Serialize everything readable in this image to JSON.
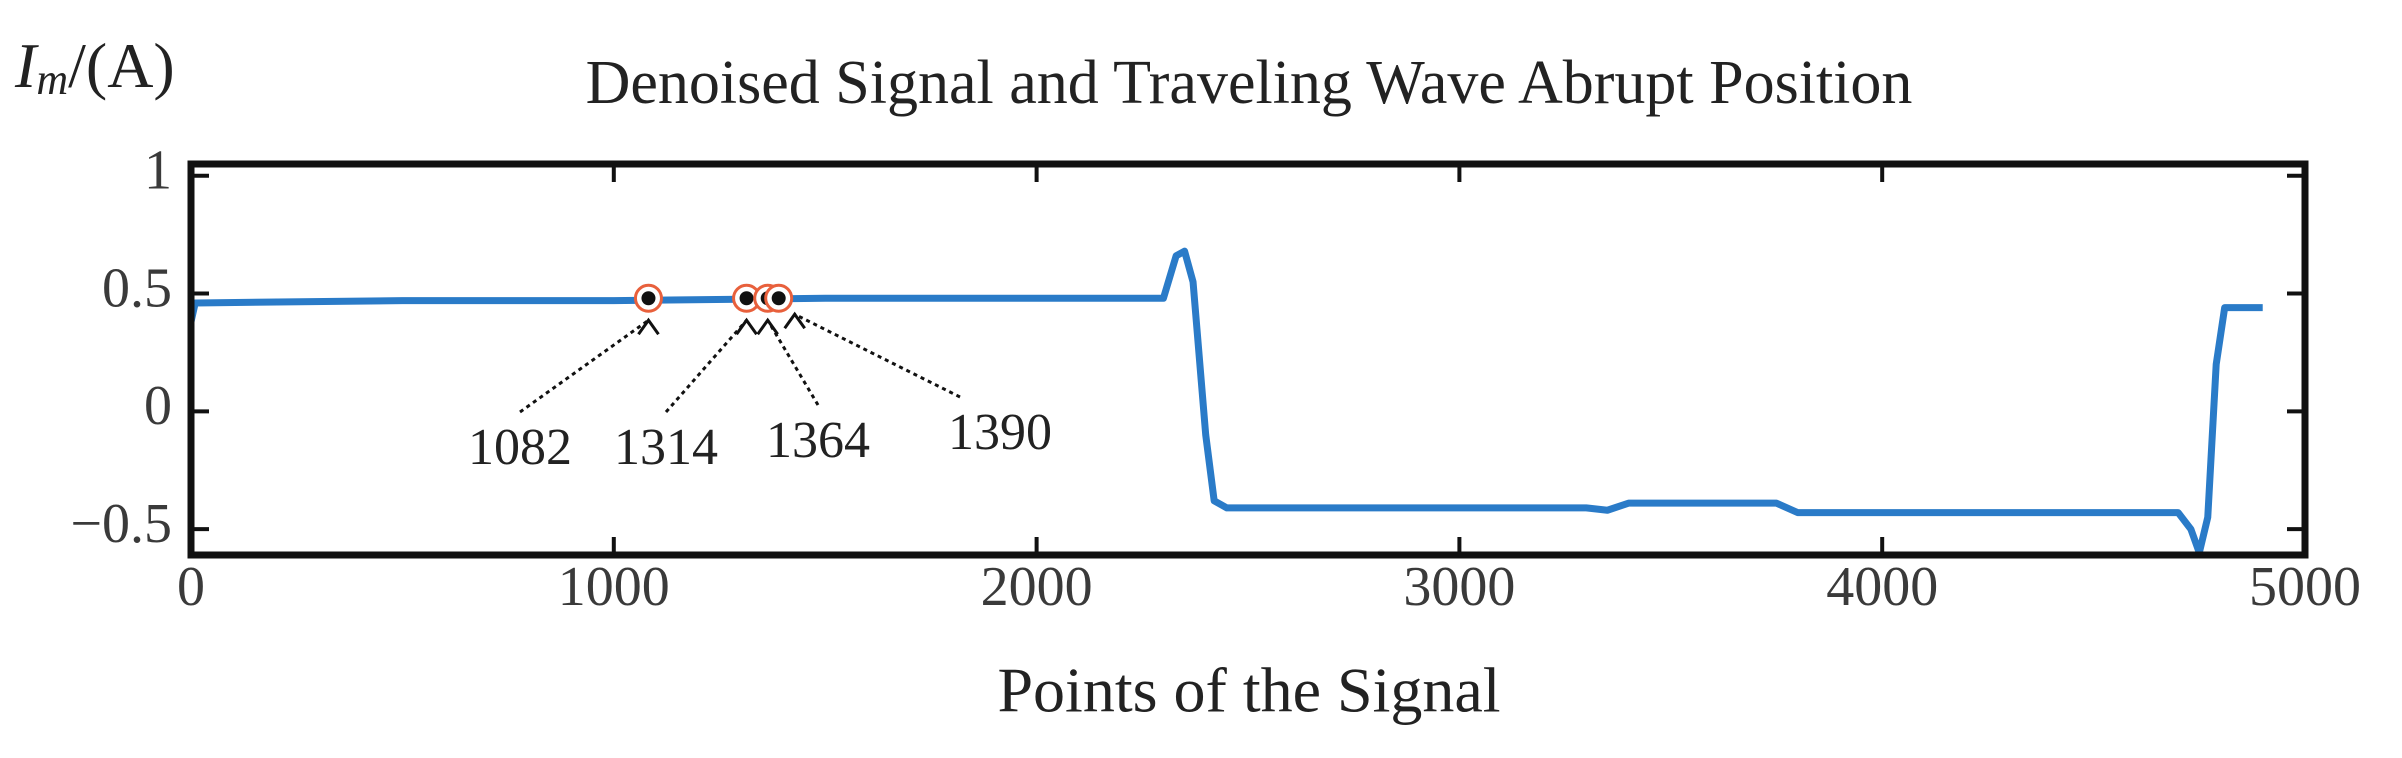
{
  "chart_data": {
    "type": "line",
    "title": "Denoised Signal and Traveling Wave Abrupt Position",
    "y_label": {
      "base": "I",
      "sub": "m",
      "unit": "/(A)"
    },
    "x_label": "Points of the Signal",
    "xlim": [
      0,
      5000
    ],
    "xticks": [
      0,
      1000,
      2000,
      3000,
      4000,
      5000
    ],
    "ylim": [
      -0.61,
      1.05
    ],
    "yticks": [
      -0.5,
      0,
      0.5,
      1
    ],
    "x": [
      0,
      10,
      500,
      1000,
      1500,
      2000,
      2300,
      2330,
      2350,
      2370,
      2400,
      2420,
      2450,
      3000,
      3300,
      3350,
      3400,
      3750,
      3800,
      4000,
      4500,
      4700,
      4730,
      4750,
      4770,
      4790,
      4810,
      4900
    ],
    "series": [
      {
        "color": "#2a7bc8",
        "values": [
          0.38,
          0.46,
          0.47,
          0.47,
          0.48,
          0.48,
          0.48,
          0.66,
          0.68,
          0.55,
          -0.1,
          -0.38,
          -0.41,
          -0.41,
          -0.41,
          -0.42,
          -0.39,
          -0.39,
          -0.43,
          -0.43,
          -0.43,
          -0.43,
          -0.5,
          -0.6,
          -0.45,
          0.2,
          0.44,
          0.44
        ]
      }
    ],
    "markers": {
      "x": [
        1082,
        1314,
        1364,
        1390
      ],
      "y": [
        0.48,
        0.48,
        0.48,
        0.48
      ],
      "color": "#e8603c"
    }
  }
}
